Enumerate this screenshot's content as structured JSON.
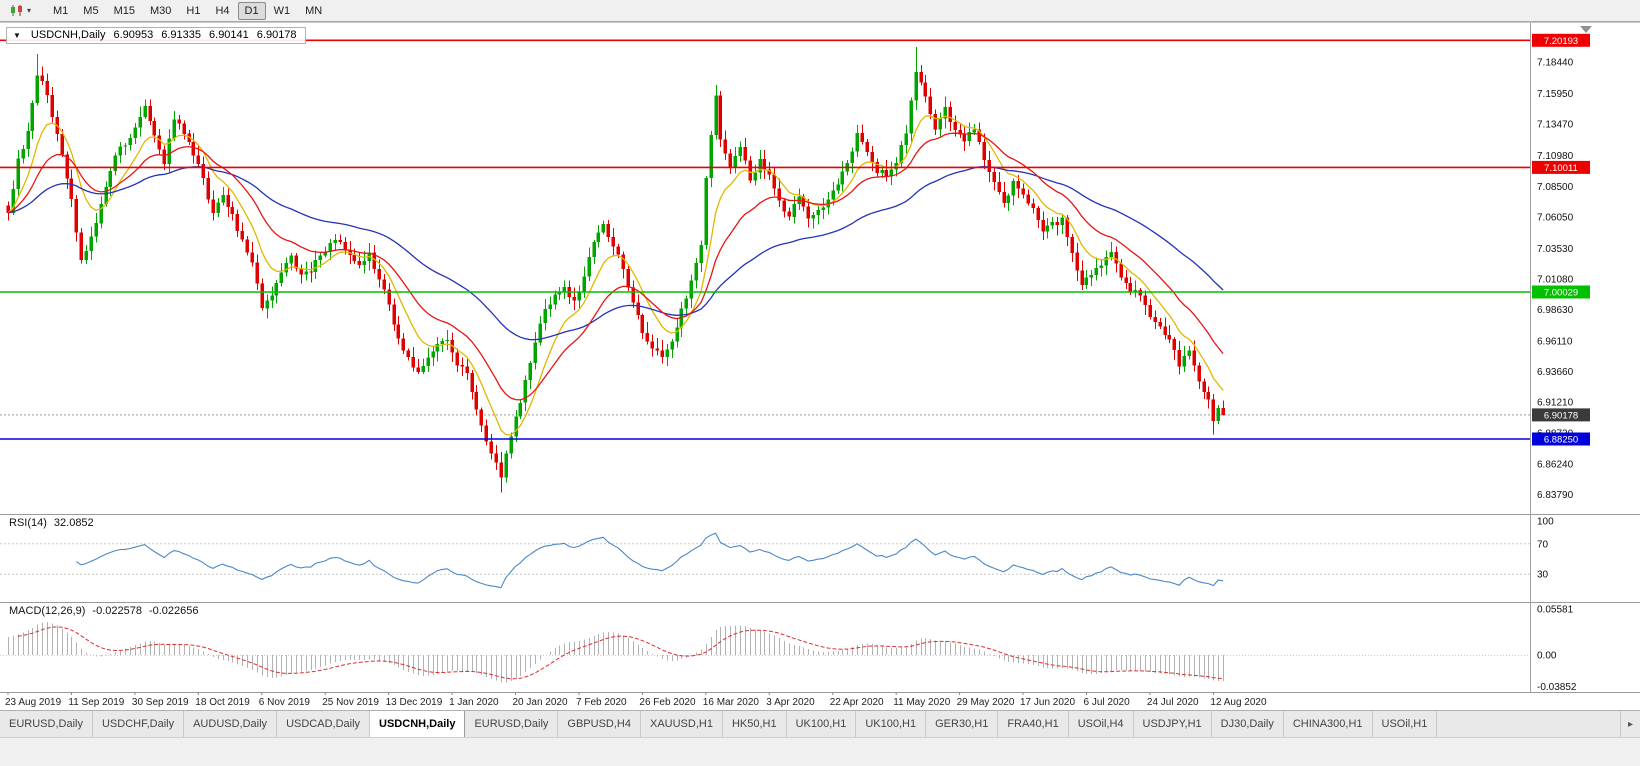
{
  "toolbar": {
    "timeframes": [
      "M1",
      "M5",
      "M15",
      "M30",
      "H1",
      "H4",
      "D1",
      "W1",
      "MN"
    ],
    "active_timeframe": "D1"
  },
  "chart": {
    "title": {
      "symbol_period": "USDCNH,Daily",
      "open": "6.90953",
      "high": "6.91335",
      "low": "6.90141",
      "close": "6.90178"
    },
    "price_axis_labels": [
      "7.18440",
      "7.15950",
      "7.13470",
      "7.10980",
      "7.08500",
      "7.06050",
      "7.03530",
      "7.01080",
      "6.98630",
      "6.96110",
      "6.93660",
      "6.91210",
      "6.88720",
      "6.86240",
      "6.83790"
    ],
    "hlines": [
      {
        "price": 7.20193,
        "label": "7.20193",
        "color": "#ee0000"
      },
      {
        "price": 7.10011,
        "label": "7.10011",
        "color": "#ee0000"
      },
      {
        "price": 7.00029,
        "label": "7.00029",
        "color": "#00c000"
      },
      {
        "price": 6.8825,
        "label": "6.88250",
        "color": "#0000dd"
      }
    ],
    "bid": {
      "price": 6.90178,
      "label": "6.90178",
      "line_color": "#999999",
      "tag_color": "#3a3a3a"
    },
    "date_labels": [
      "23 Aug 2019",
      "11 Sep 2019",
      "30 Sep 2019",
      "18 Oct 2019",
      "6 Nov 2019",
      "25 Nov 2019",
      "13 Dec 2019",
      "1 Jan 2020",
      "20 Jan 2020",
      "7 Feb 2020",
      "26 Feb 2020",
      "16 Mar 2020",
      "3 Apr 2020",
      "22 Apr 2020",
      "11 May 2020",
      "29 May 2020",
      "17 Jun 2020",
      "6 Jul 2020",
      "24 Jul 2020",
      "12 Aug 2020"
    ]
  },
  "indicators": {
    "rsi": {
      "label": "RSI(14)",
      "value": "32.0852",
      "axis_labels": [
        "100",
        "70",
        "30"
      ],
      "level_lines": [
        70,
        30
      ],
      "line_color": "#4a87c7"
    },
    "macd": {
      "label": "MACD(12,26,9)",
      "main_value": "-0.022578",
      "signal_value": "-0.022656",
      "axis_labels": [
        "0.05581",
        "0.00",
        "-0.03852"
      ],
      "hist_color": "#b2b2b2",
      "signal_color": "#d93030"
    }
  },
  "tabs": {
    "items": [
      "EURUSD,Daily",
      "USDCHF,Daily",
      "AUDUSD,Daily",
      "USDCAD,Daily",
      "USDCNH,Daily",
      "EURUSD,Daily",
      "GBPUSD,H4",
      "XAUUSD,H1",
      "HK50,H1",
      "UK100,H1",
      "UK100,H1",
      "GER30,H1",
      "FRA40,H1",
      "USOil,H4",
      "USDJPY,H1",
      "DJ30,Daily",
      "CHINA300,H1",
      "USOil,H1"
    ],
    "active_index": 4,
    "scroll_right_glyph": "▸"
  },
  "chart_data": {
    "type": "candlestick",
    "symbol": "USDCNH",
    "period": "Daily",
    "bars": 250,
    "ylim": [
      6.824,
      7.215
    ],
    "up_color": "#00a500",
    "down_color": "#e00000",
    "close_waypoints": [
      [
        0,
        7.065
      ],
      [
        2,
        7.105
      ],
      [
        4,
        7.13
      ],
      [
        6,
        7.175
      ],
      [
        8,
        7.16
      ],
      [
        10,
        7.125
      ],
      [
        13,
        7.075
      ],
      [
        15,
        7.025
      ],
      [
        17,
        7.045
      ],
      [
        19,
        7.07
      ],
      [
        22,
        7.11
      ],
      [
        25,
        7.125
      ],
      [
        28,
        7.148
      ],
      [
        30,
        7.125
      ],
      [
        32,
        7.105
      ],
      [
        34,
        7.138
      ],
      [
        36,
        7.128
      ],
      [
        38,
        7.112
      ],
      [
        40,
        7.09
      ],
      [
        42,
        7.063
      ],
      [
        44,
        7.078
      ],
      [
        46,
        7.062
      ],
      [
        48,
        7.04
      ],
      [
        50,
        7.022
      ],
      [
        52,
        6.988
      ],
      [
        54,
        6.999
      ],
      [
        56,
        7.018
      ],
      [
        58,
        7.028
      ],
      [
        60,
        7.012
      ],
      [
        62,
        7.018
      ],
      [
        64,
        7.03
      ],
      [
        66,
        7.038
      ],
      [
        68,
        7.042
      ],
      [
        70,
        7.028
      ],
      [
        72,
        7.022
      ],
      [
        74,
        7.03
      ],
      [
        76,
        7.012
      ],
      [
        78,
        6.988
      ],
      [
        80,
        6.962
      ],
      [
        82,
        6.948
      ],
      [
        84,
        6.936
      ],
      [
        86,
        6.95
      ],
      [
        88,
        6.958
      ],
      [
        90,
        6.962
      ],
      [
        92,
        6.944
      ],
      [
        94,
        6.934
      ],
      [
        96,
        6.905
      ],
      [
        98,
        6.882
      ],
      [
        100,
        6.862
      ],
      [
        101,
        6.852
      ],
      [
        102,
        6.872
      ],
      [
        104,
        6.9
      ],
      [
        106,
        6.928
      ],
      [
        108,
        6.962
      ],
      [
        110,
        6.985
      ],
      [
        112,
        6.998
      ],
      [
        114,
        7.002
      ],
      [
        116,
        6.993
      ],
      [
        118,
        7.012
      ],
      [
        120,
        7.042
      ],
      [
        122,
        7.055
      ],
      [
        124,
        7.038
      ],
      [
        126,
        7.018
      ],
      [
        128,
        6.992
      ],
      [
        130,
        6.968
      ],
      [
        132,
        6.955
      ],
      [
        134,
        6.948
      ],
      [
        136,
        6.962
      ],
      [
        138,
        6.986
      ],
      [
        140,
        7.008
      ],
      [
        142,
        7.04
      ],
      [
        143,
        7.09
      ],
      [
        145,
        7.16
      ],
      [
        146,
        7.125
      ],
      [
        148,
        7.102
      ],
      [
        150,
        7.118
      ],
      [
        152,
        7.088
      ],
      [
        154,
        7.108
      ],
      [
        156,
        7.092
      ],
      [
        158,
        7.072
      ],
      [
        160,
        7.062
      ],
      [
        162,
        7.078
      ],
      [
        164,
        7.058
      ],
      [
        166,
        7.068
      ],
      [
        168,
        7.072
      ],
      [
        170,
        7.088
      ],
      [
        172,
        7.102
      ],
      [
        174,
        7.128
      ],
      [
        176,
        7.112
      ],
      [
        178,
        7.098
      ],
      [
        180,
        7.095
      ],
      [
        182,
        7.105
      ],
      [
        184,
        7.128
      ],
      [
        186,
        7.178
      ],
      [
        188,
        7.158
      ],
      [
        190,
        7.132
      ],
      [
        192,
        7.148
      ],
      [
        194,
        7.128
      ],
      [
        196,
        7.122
      ],
      [
        198,
        7.132
      ],
      [
        200,
        7.108
      ],
      [
        202,
        7.088
      ],
      [
        204,
        7.072
      ],
      [
        206,
        7.088
      ],
      [
        208,
        7.078
      ],
      [
        210,
        7.068
      ],
      [
        212,
        7.048
      ],
      [
        214,
        7.055
      ],
      [
        216,
        7.058
      ],
      [
        218,
        7.032
      ],
      [
        220,
        7.008
      ],
      [
        222,
        7.012
      ],
      [
        224,
        7.022
      ],
      [
        226,
        7.032
      ],
      [
        228,
        7.012
      ],
      [
        230,
        7.002
      ],
      [
        232,
        6.998
      ],
      [
        234,
        6.982
      ],
      [
        236,
        6.972
      ],
      [
        238,
        6.962
      ],
      [
        240,
        6.942
      ],
      [
        242,
        6.952
      ],
      [
        244,
        6.928
      ],
      [
        246,
        6.915
      ],
      [
        247,
        6.898
      ],
      [
        248,
        6.908
      ],
      [
        249,
        6.9018
      ]
    ],
    "wick_overrides": {
      "6": {
        "high": 7.191
      },
      "101": {
        "low": 6.8395
      },
      "145": {
        "high": 7.166
      },
      "186": {
        "high": 7.1966
      },
      "247": {
        "low": 6.886
      },
      "249": {
        "high": 6.91335,
        "low": 6.90141
      }
    },
    "tick_bars": [
      0,
      13,
      26,
      39,
      52,
      65,
      78,
      91,
      104,
      117,
      130,
      143,
      156,
      169,
      182,
      195,
      208,
      221,
      234,
      247
    ],
    "moving_averages": [
      {
        "period": 9,
        "color": "#e0b800"
      },
      {
        "period": 55,
        "color": "#2233bb"
      },
      {
        "period": 21,
        "color": "#e81515"
      }
    ],
    "rsi_period": 14,
    "macd_params": [
      12,
      26,
      9
    ]
  }
}
